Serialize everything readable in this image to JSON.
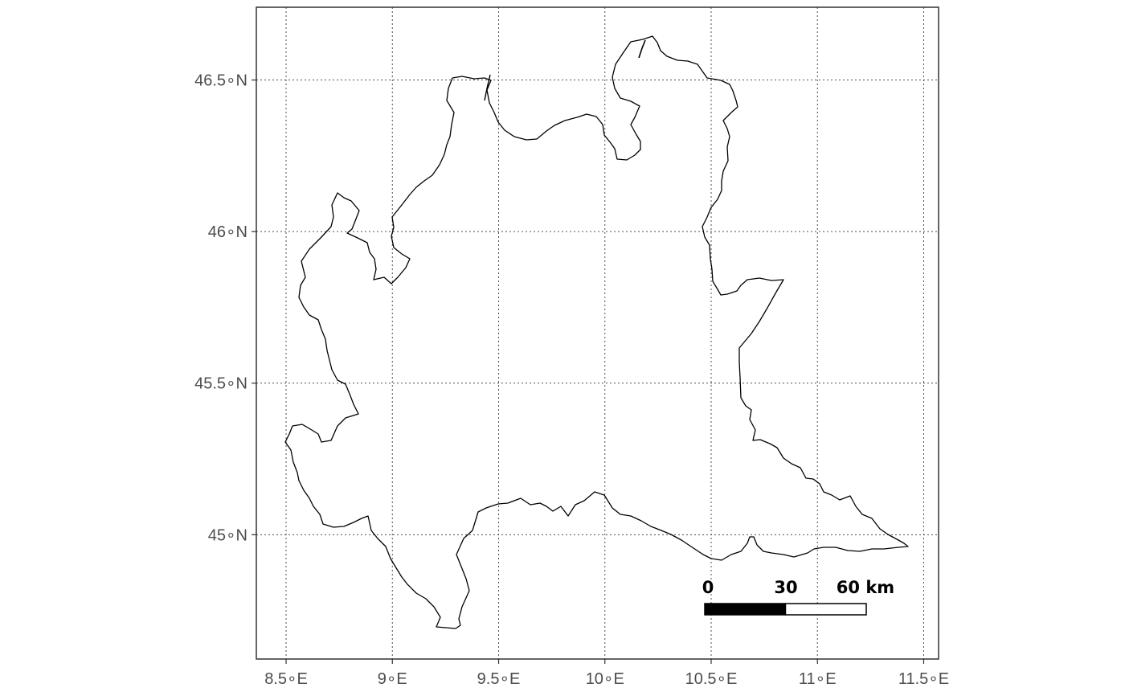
{
  "map": {
    "type": "region-outline-map",
    "x_ticks": [
      "8.5∘E",
      "9∘E",
      "9.5∘E",
      "10∘E",
      "10.5∘E",
      "11∘E",
      "11.5∘E"
    ],
    "y_ticks": [
      "45∘N",
      "45.5∘N",
      "46∘N",
      "46.5∘N"
    ],
    "x_tick_values": [
      8.5,
      9.0,
      9.5,
      10.0,
      10.5,
      11.0,
      11.5
    ],
    "y_tick_values": [
      45.0,
      45.5,
      46.0,
      46.5
    ],
    "lon_range": [
      8.36,
      11.57
    ],
    "lat_range": [
      44.59,
      46.74
    ],
    "grid": "dotted",
    "outline_color": "#000000",
    "panel_border_color": "#333333",
    "gridline_color": "#4d4d4d",
    "scale_bar": {
      "labels": [
        "0",
        "30",
        "60 km"
      ],
      "fill_colors": [
        "#000000",
        "#ffffff"
      ],
      "placement": "bottom-right"
    }
  }
}
